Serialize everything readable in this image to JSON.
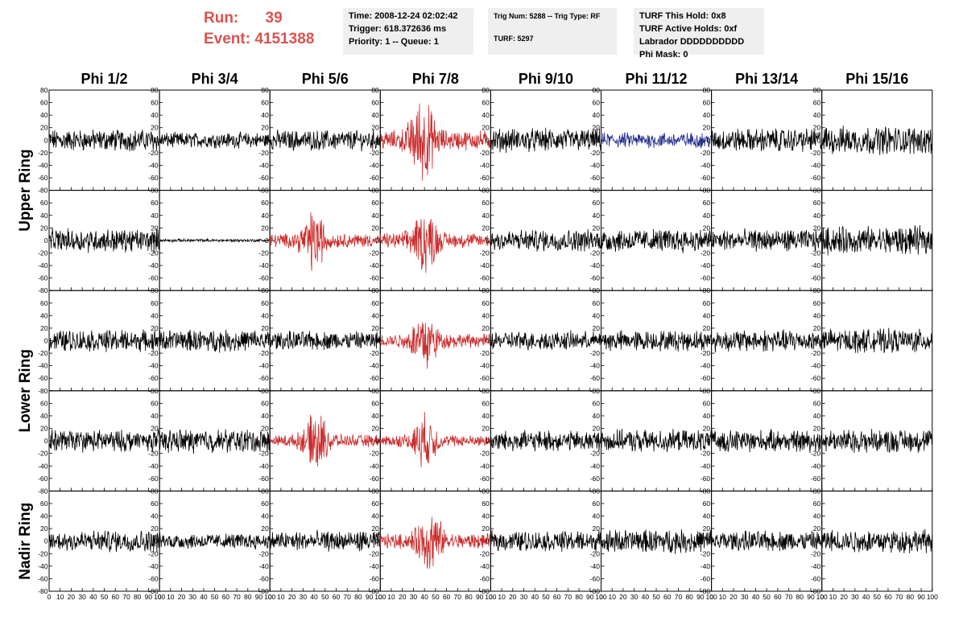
{
  "header": {
    "run_label": "Run:",
    "run_value": "39",
    "event_label": "Event:",
    "event_value": "4151388",
    "time": "Time: 2008-12-24 02:02:42",
    "trigger": "Trigger: 618.372636 ms",
    "priority": "Priority: 1 -- Queue: 1",
    "trig_num": "Trig Num: 5288 -- Trig Type: RF",
    "turf": "TURF: 5297",
    "turf_this_hold": "TURF This Hold: 0x8",
    "turf_active_holds": "TURF Active Holds: 0xf",
    "labrador": "Labrador DDDDDDDDDD",
    "phi_mask": "Phi Mask: 0"
  },
  "chart_data": {
    "type": "line",
    "grid": false,
    "columns": [
      "Phi 1/2",
      "Phi 3/4",
      "Phi 5/6",
      "Phi 7/8",
      "Phi 9/10",
      "Phi 11/12",
      "Phi 13/14",
      "Phi 15/16"
    ],
    "rows": [
      "Upper Ring",
      "Lower Ring",
      "Nadir Ring"
    ],
    "xlim": [
      0,
      100
    ],
    "x_ticks": [
      "0",
      "10",
      "20",
      "30",
      "40",
      "50",
      "60",
      "70",
      "80",
      "90",
      "100"
    ],
    "ylim": [
      -80,
      80
    ],
    "y_ticks": [
      "80",
      "60",
      "40",
      "20",
      "0",
      "-20",
      "-40",
      "-60",
      "-80"
    ],
    "colors": {
      "normal": "#000000",
      "triggered": "#cc2a2a",
      "masked": "#1f2a8a"
    },
    "panels": [
      [
        {
          "amp": 14,
          "color": "normal"
        },
        {
          "amp": 10,
          "color": "normal"
        },
        {
          "amp": 13,
          "color": "normal"
        },
        {
          "amp": 50,
          "color": "triggered",
          "burst_center": 38
        },
        {
          "amp": 15,
          "color": "normal"
        },
        {
          "amp": 10,
          "color": "masked"
        },
        {
          "amp": 15,
          "color": "normal"
        },
        {
          "amp": 18,
          "color": "normal"
        }
      ],
      [
        {
          "amp": 15,
          "color": "normal"
        },
        {
          "amp": 2,
          "color": "normal"
        },
        {
          "amp": 35,
          "color": "triggered",
          "burst_center": 40
        },
        {
          "amp": 38,
          "color": "triggered",
          "burst_center": 40
        },
        {
          "amp": 14,
          "color": "normal"
        },
        {
          "amp": 15,
          "color": "normal"
        },
        {
          "amp": 14,
          "color": "normal"
        },
        {
          "amp": 18,
          "color": "normal"
        }
      ],
      [
        {
          "amp": 14,
          "color": "normal"
        },
        {
          "amp": 14,
          "color": "normal"
        },
        {
          "amp": 12,
          "color": "normal"
        },
        {
          "amp": 35,
          "color": "triggered",
          "burst_center": 40
        },
        {
          "amp": 12,
          "color": "normal"
        },
        {
          "amp": 13,
          "color": "normal"
        },
        {
          "amp": 14,
          "color": "normal"
        },
        {
          "amp": 15,
          "color": "normal"
        }
      ],
      [
        {
          "amp": 14,
          "color": "normal"
        },
        {
          "amp": 15,
          "color": "normal"
        },
        {
          "amp": 32,
          "color": "triggered",
          "burst_center": 42
        },
        {
          "amp": 30,
          "color": "triggered",
          "burst_center": 40
        },
        {
          "amp": 13,
          "color": "normal"
        },
        {
          "amp": 14,
          "color": "normal"
        },
        {
          "amp": 14,
          "color": "normal"
        },
        {
          "amp": 15,
          "color": "normal"
        }
      ],
      [
        {
          "amp": 14,
          "color": "normal"
        },
        {
          "amp": 10,
          "color": "normal"
        },
        {
          "amp": 13,
          "color": "normal"
        },
        {
          "amp": 38,
          "color": "triggered",
          "burst_center": 45
        },
        {
          "amp": 13,
          "color": "normal"
        },
        {
          "amp": 15,
          "color": "normal"
        },
        {
          "amp": 13,
          "color": "normal"
        },
        {
          "amp": 15,
          "color": "normal"
        }
      ]
    ]
  }
}
